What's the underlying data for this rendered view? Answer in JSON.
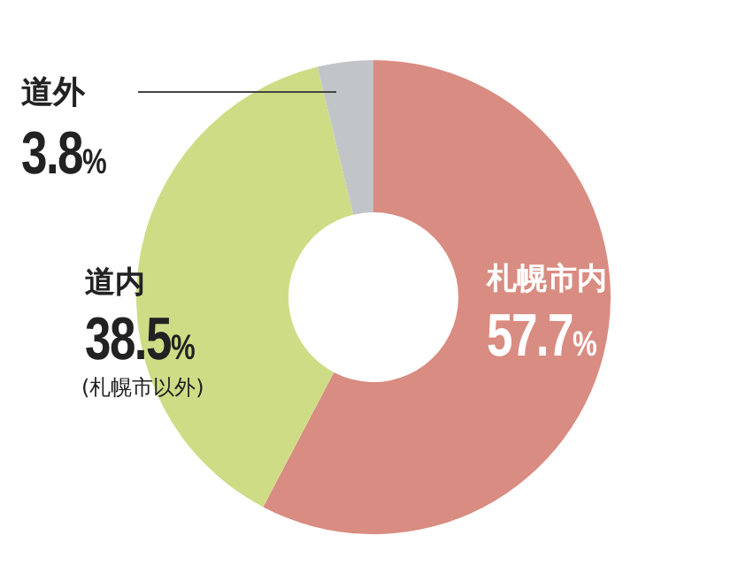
{
  "chart_data": {
    "type": "donut",
    "categories": [
      "札幌市内",
      "道内",
      "道外"
    ],
    "values": [
      57.7,
      38.5,
      3.8
    ],
    "value_labels": [
      "57.7%",
      "38.5%",
      "3.8%"
    ],
    "colors": [
      "#d98c81",
      "#cfdc86",
      "#c1c5c8"
    ],
    "annotations": [
      "(札幌市以外)"
    ]
  }
}
